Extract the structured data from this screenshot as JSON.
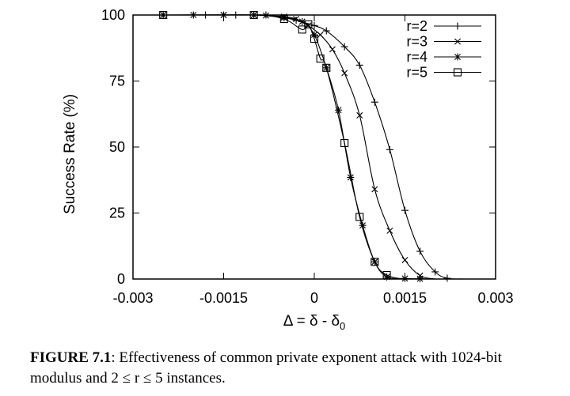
{
  "chart_data": {
    "type": "line",
    "title": "",
    "xlabel_main": "Δ = δ - δ",
    "xlabel_sub": "0",
    "ylabel": "Success Rate (%)",
    "xlim": [
      -0.003,
      0.003
    ],
    "ylim": [
      0,
      100
    ],
    "x_ticks": [
      -0.003,
      -0.0015,
      0,
      0.0015,
      0.003
    ],
    "x_tick_labels": [
      "-0.003",
      "-0.0015",
      "0",
      "0.0015",
      "0.003"
    ],
    "y_ticks": [
      0,
      25,
      50,
      75,
      100
    ],
    "y_tick_labels": [
      "0",
      "25",
      "50",
      "75",
      "100"
    ],
    "legend_position": "top-right",
    "series": [
      {
        "name": "r=2",
        "marker": "plus",
        "x": [
          -0.0025,
          -0.002,
          -0.0018,
          -0.0015,
          -0.0013,
          -0.001,
          -0.0008,
          -0.0005,
          -0.0003,
          0,
          0.0002,
          0.0005,
          0.00075,
          0.001,
          0.00125,
          0.0015,
          0.00175,
          0.002,
          0.0022
        ],
        "y": [
          100,
          100,
          100,
          100,
          100,
          100,
          100,
          99,
          98,
          96,
          94,
          88,
          81,
          67,
          49,
          26,
          10.5,
          2.7,
          0.3
        ]
      },
      {
        "name": "r=3",
        "marker": "x",
        "x": [
          -0.0025,
          -0.002,
          -0.0015,
          -0.001,
          -0.0008,
          -0.0005,
          -0.0003,
          -0.0001,
          0.0001,
          0.0003,
          0.0005,
          0.00075,
          0.001,
          0.00125,
          0.0015,
          0.00175
        ],
        "y": [
          100,
          100,
          100,
          100,
          99.8,
          99.4,
          98.5,
          96,
          92.5,
          87,
          78,
          62,
          34,
          18.3,
          7.2,
          1.3
        ]
      },
      {
        "name": "r=4",
        "marker": "star",
        "x": [
          -0.0025,
          -0.0015,
          -0.001,
          -0.0005,
          -0.0002,
          0,
          0.0002,
          0.0004,
          0.0006,
          0.0008,
          0.001,
          0.0012,
          0.0015,
          0.00175
        ],
        "y": [
          100,
          100,
          100,
          99,
          97.5,
          92.5,
          80,
          64,
          38.5,
          20.3,
          6.5,
          0.8,
          0.2,
          0.1
        ]
      },
      {
        "name": "r=5",
        "marker": "square",
        "x": [
          -0.0025,
          -0.001,
          -0.0005,
          -0.0002,
          -0.0001,
          0,
          0.0001,
          0.0002,
          0.0005,
          0.00075,
          0.001,
          0.0012
        ],
        "y": [
          100,
          100,
          98.5,
          94.5,
          96.5,
          91,
          83.5,
          80,
          51.5,
          23.5,
          6.5,
          1.5
        ]
      }
    ]
  },
  "caption": {
    "label": "FIGURE 7.1",
    "text": ": Effectiveness of common private exponent attack with 1024-bit modulus and 2 ≤ r ≤ 5 instances."
  }
}
